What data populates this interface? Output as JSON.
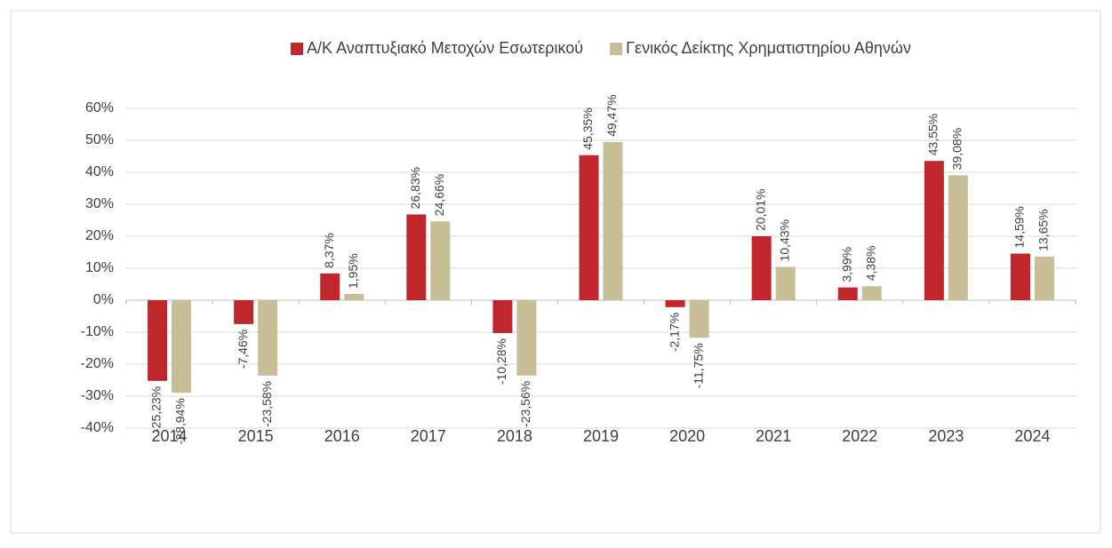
{
  "chart_data": {
    "type": "bar",
    "categories": [
      "2014",
      "2015",
      "2016",
      "2017",
      "2018",
      "2019",
      "2020",
      "2021",
      "2022",
      "2023",
      "2024"
    ],
    "series": [
      {
        "name": "Α/Κ Αναπτυξιακό Μετοχών Εσωτερικού",
        "color": "#c0272d",
        "values": [
          -25.23,
          -7.46,
          8.37,
          26.83,
          -10.28,
          45.35,
          -2.17,
          20.01,
          3.99,
          43.55,
          14.59
        ],
        "value_labels": [
          "-25,23%",
          "-7,46%",
          "8,37%",
          "26,83%",
          "-10,28%",
          "45,35%",
          "-2,17%",
          "20,01%",
          "3,99%",
          "43,55%",
          "14,59%"
        ]
      },
      {
        "name": "Γενικός Δείκτης Χρηματιστηρίου Αθηνών",
        "color": "#c7bd97",
        "values": [
          -28.94,
          -23.58,
          1.95,
          24.66,
          -23.56,
          49.47,
          -11.75,
          10.43,
          4.38,
          39.08,
          13.65
        ],
        "value_labels": [
          "-28,94%",
          "-23,58%",
          "1,95%",
          "24,66%",
          "-23,56%",
          "49,47%",
          "-11,75%",
          "10,43%",
          "4,38%",
          "39,08%",
          "13,65%"
        ]
      }
    ],
    "ylim": [
      -40,
      60
    ],
    "yticks": [
      {
        "value": -40,
        "label": "-40%"
      },
      {
        "value": -30,
        "label": "-30%"
      },
      {
        "value": -20,
        "label": "-20%"
      },
      {
        "value": -10,
        "label": "-10%"
      },
      {
        "value": 0,
        "label": "0%"
      },
      {
        "value": 10,
        "label": "10%"
      },
      {
        "value": 20,
        "label": "20%"
      },
      {
        "value": 30,
        "label": "30%"
      },
      {
        "value": 40,
        "label": "40%"
      },
      {
        "value": 50,
        "label": "50%"
      },
      {
        "value": 60,
        "label": "60%"
      }
    ],
    "grid": true,
    "legend": "top"
  }
}
